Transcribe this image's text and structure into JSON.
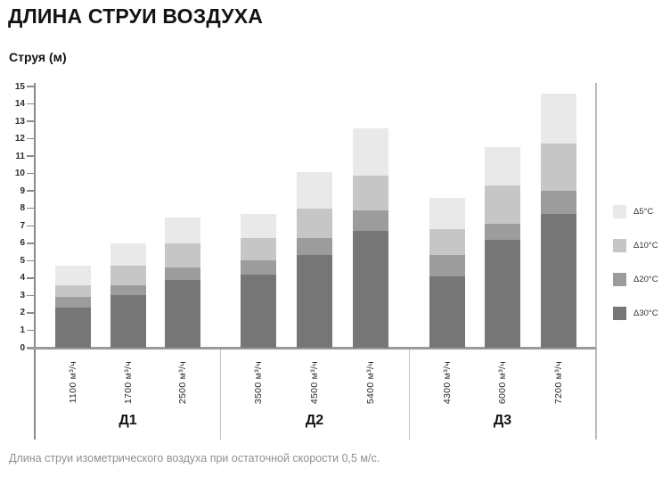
{
  "page": {
    "caption": "Длина струи изометрического воздуха при остаточной скорости 0,5 м/с."
  },
  "chart_data": {
    "type": "bar",
    "stacked": true,
    "title": "ДЛИНА СТРУИ ВОЗДУХА",
    "ylabel": "Струя (м)",
    "xlabel": "",
    "ylim": [
      0,
      15
    ],
    "yticks": [
      0,
      1,
      2,
      3,
      4,
      5,
      6,
      7,
      8,
      9,
      10,
      11,
      12,
      13,
      14,
      15
    ],
    "grid": false,
    "legend_position": "right",
    "stack_order_bottom_to_top": [
      "Δ30°C",
      "Δ20°C",
      "Δ10°C",
      "Δ5°C"
    ],
    "legend": [
      {
        "label": "Δ5°C",
        "color": "#e9e9e9"
      },
      {
        "label": "Δ10°C",
        "color": "#c6c6c6"
      },
      {
        "label": "Δ20°C",
        "color": "#9c9c9c"
      },
      {
        "label": "Δ30°C",
        "color": "#767676"
      }
    ],
    "groups": [
      {
        "label": "Д1",
        "bars": [
          {
            "flow": "1100 м³/ч",
            "cumulative_m": [
              2.3,
              2.9,
              3.6,
              4.7
            ]
          },
          {
            "flow": "1700 м³/ч",
            "cumulative_m": [
              3.0,
              3.6,
              4.7,
              6.0
            ]
          },
          {
            "flow": "2500 м³/ч",
            "cumulative_m": [
              3.9,
              4.6,
              6.0,
              7.5
            ]
          }
        ]
      },
      {
        "label": "Д2",
        "bars": [
          {
            "flow": "3500 м³/ч",
            "cumulative_m": [
              4.2,
              5.0,
              6.3,
              7.7
            ]
          },
          {
            "flow": "4500 м³/ч",
            "cumulative_m": [
              5.3,
              6.3,
              8.0,
              10.1
            ]
          },
          {
            "flow": "5400 м³/ч",
            "cumulative_m": [
              6.7,
              7.9,
              9.9,
              12.6
            ]
          }
        ]
      },
      {
        "label": "Д3",
        "bars": [
          {
            "flow": "4300 м³/ч",
            "cumulative_m": [
              4.1,
              5.3,
              6.8,
              8.6
            ]
          },
          {
            "flow": "6000 м³/ч",
            "cumulative_m": [
              6.2,
              7.1,
              9.3,
              11.5
            ]
          },
          {
            "flow": "7200 м³/ч",
            "cumulative_m": [
              7.7,
              9.0,
              11.7,
              14.6
            ]
          }
        ]
      }
    ]
  }
}
